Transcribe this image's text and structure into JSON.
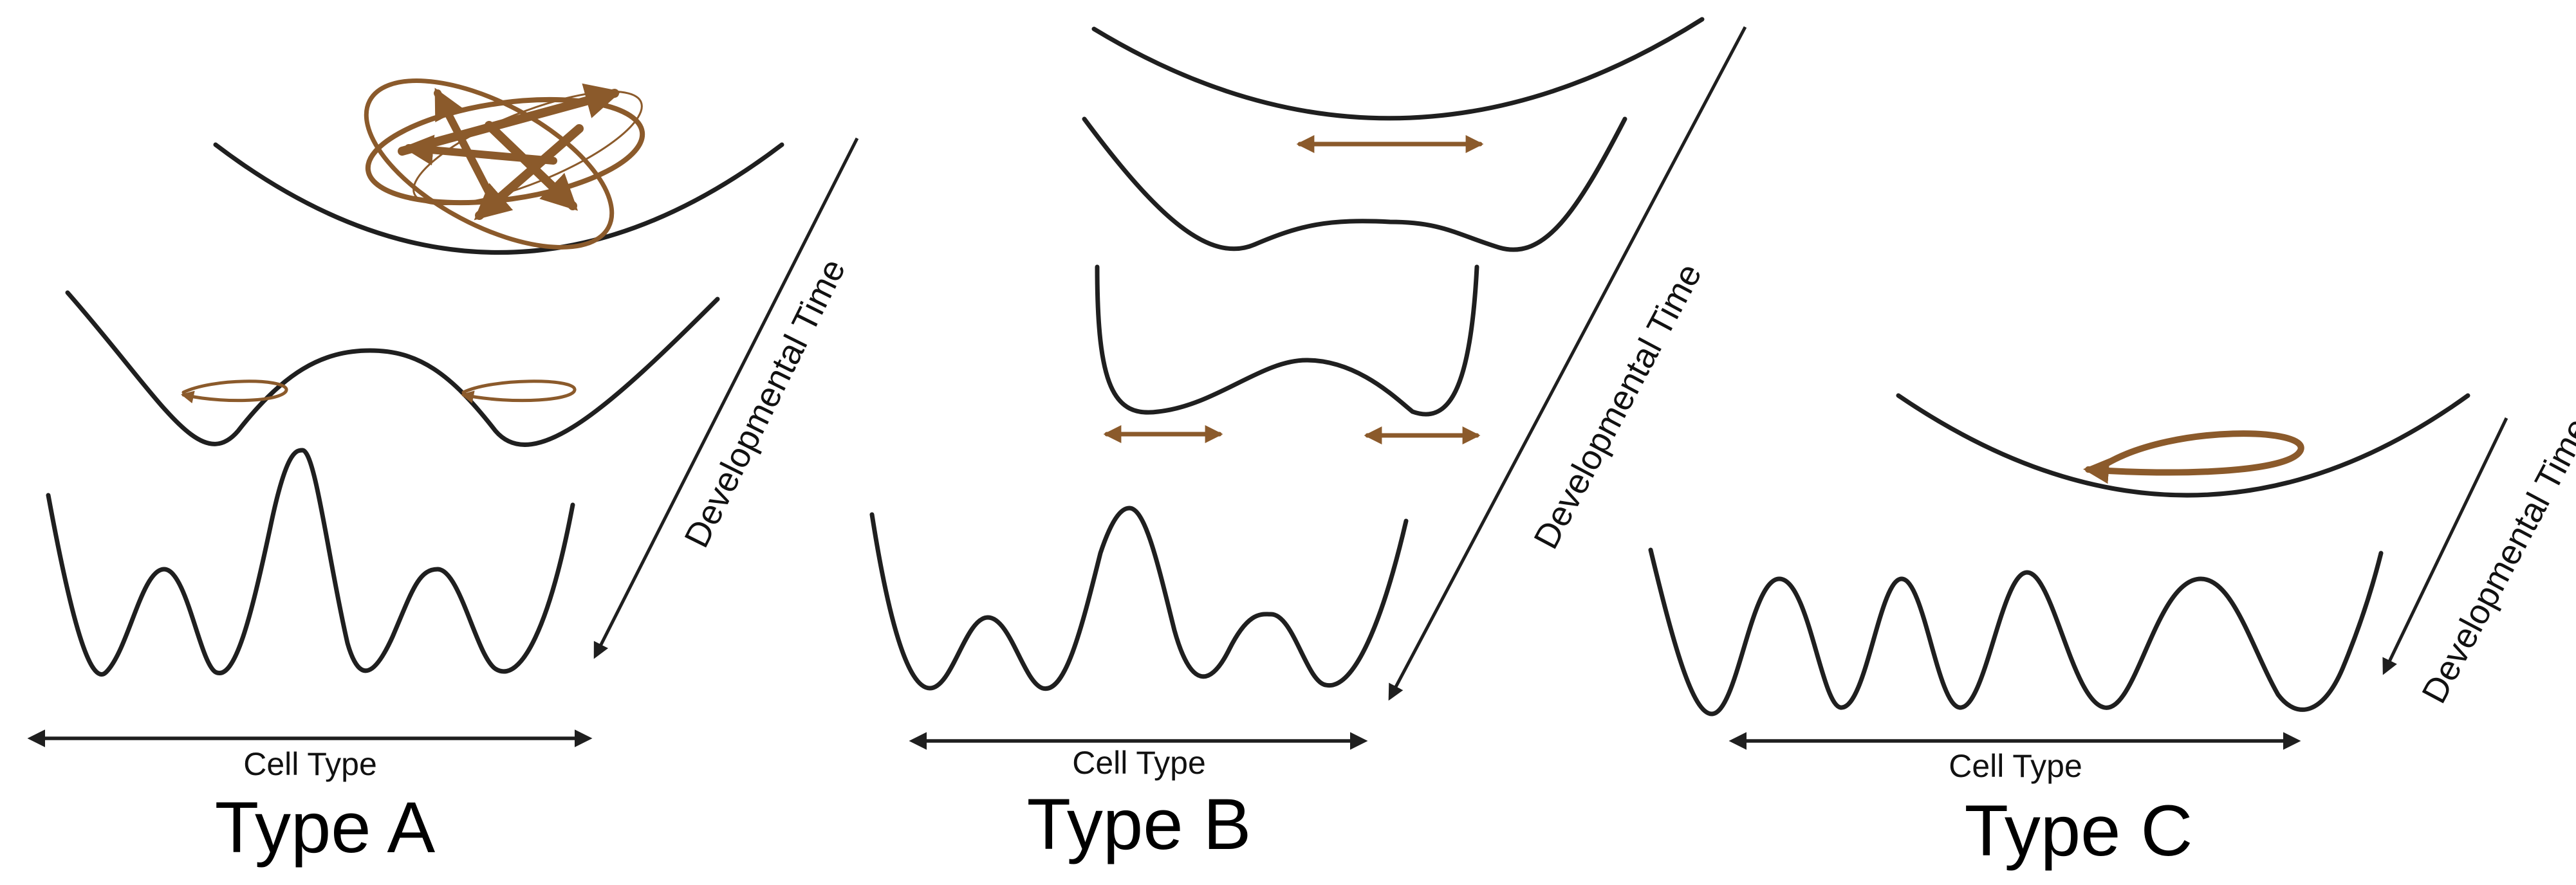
{
  "colors": {
    "curve": "#1f1f1f",
    "motion_arrows": "#8b5a2b"
  },
  "panels": [
    {
      "type_label": "Type A",
      "axis_label": "Cell Type",
      "time_label": "Developmental Time"
    },
    {
      "type_label": "Type B",
      "axis_label": "Cell Type",
      "time_label": "Developmental Time"
    },
    {
      "type_label": "Type C",
      "axis_label": "Cell Type",
      "time_label": "Developmental Time"
    }
  ]
}
